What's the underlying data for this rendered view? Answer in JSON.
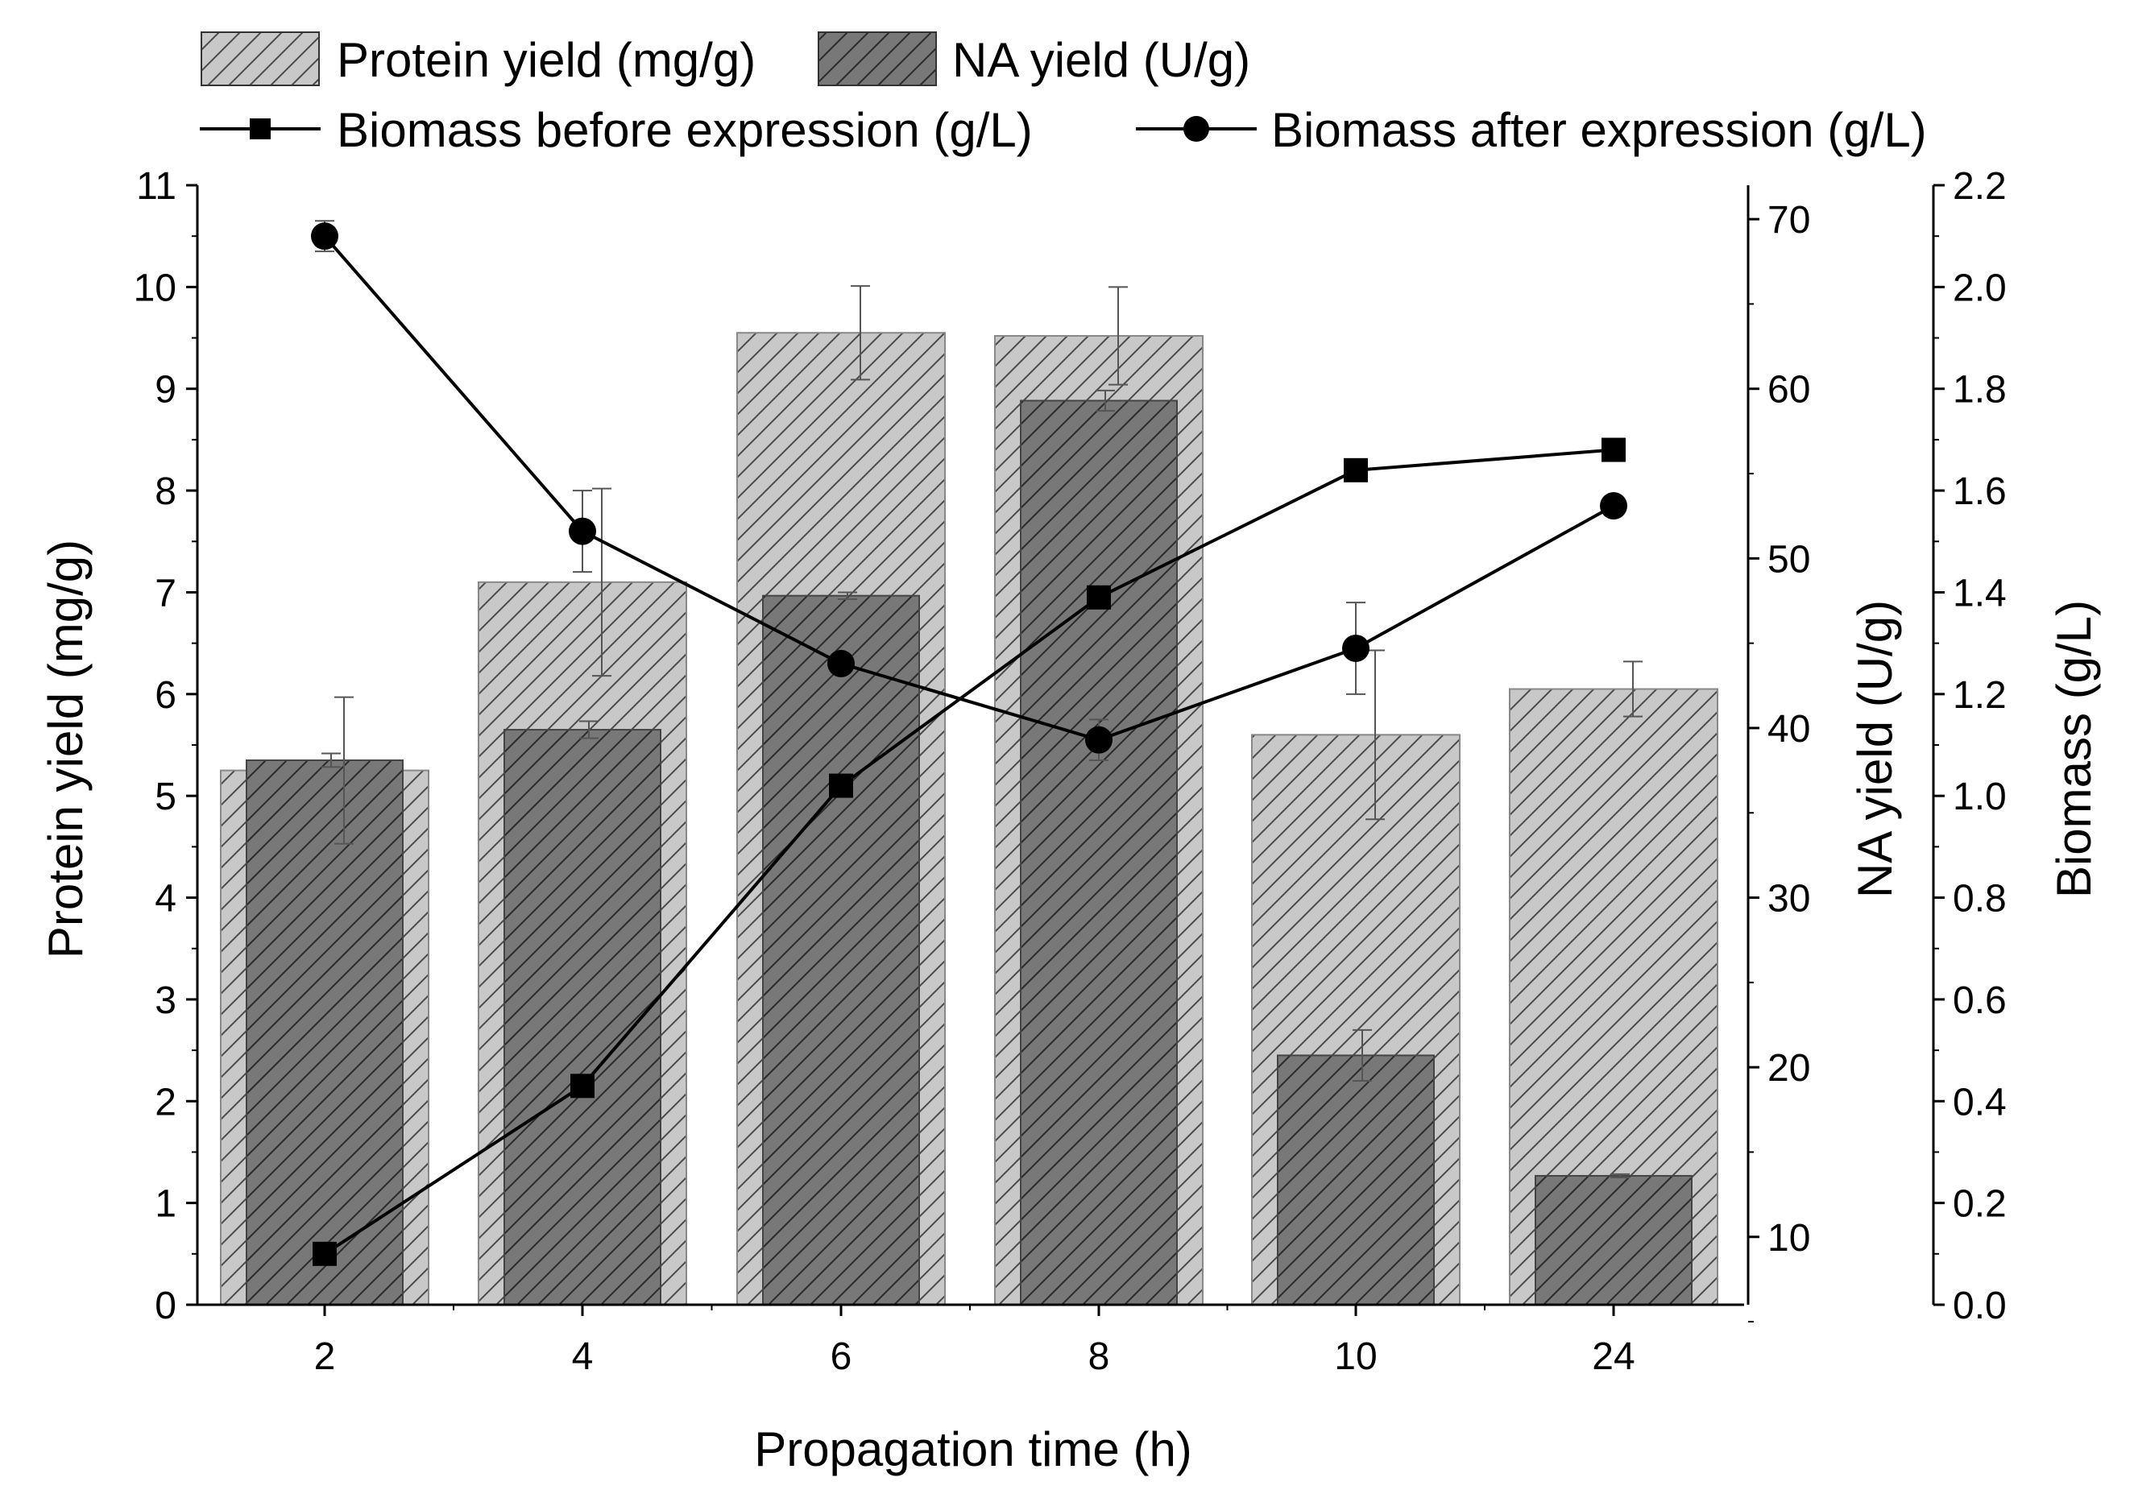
{
  "colors": {
    "protein_fill": "#c8c8c8",
    "protein_hatch": "#4a4a4a",
    "na_fill": "#787878",
    "na_hatch": "#2a2a2a",
    "line": "#000000",
    "errorbar": "#555555"
  },
  "chart_data": {
    "type": "bar",
    "title": "",
    "categories": [
      "2",
      "4",
      "6",
      "8",
      "10",
      "24"
    ],
    "xlabel": "Propagation time (h)",
    "axes": {
      "left": {
        "label": "Protein yield (mg/g)",
        "range": [
          0,
          11
        ],
        "ticks": [
          "0",
          "1",
          "2",
          "3",
          "4",
          "5",
          "6",
          "7",
          "8",
          "9",
          "10",
          "11"
        ]
      },
      "right_na": {
        "label": "NA yield (U/g)",
        "range": [
          6,
          72
        ],
        "ticks": [
          "10",
          "20",
          "30",
          "40",
          "50",
          "60",
          "70"
        ]
      },
      "right_biomass": {
        "label": "Biomass (g/L)",
        "range": [
          0.0,
          2.2
        ],
        "ticks": [
          "0.0",
          "0.2",
          "0.4",
          "0.6",
          "0.8",
          "1.0",
          "1.2",
          "1.4",
          "1.6",
          "1.8",
          "2.0",
          "2.2"
        ]
      }
    },
    "series": [
      {
        "name": "Protein yield (mg/g)",
        "type": "bar",
        "axis": "left",
        "values": [
          5.25,
          7.1,
          9.55,
          9.52,
          5.6,
          6.05
        ],
        "errors": [
          0.72,
          0.92,
          0.46,
          0.48,
          0.83,
          0.27
        ]
      },
      {
        "name": "NA yield (U/g)",
        "type": "bar",
        "axis": "right_na",
        "values": [
          38.1,
          39.9,
          47.8,
          59.3,
          20.7,
          13.6
        ],
        "errors": [
          0.4,
          0.5,
          0.2,
          0.6,
          1.5,
          0.1
        ]
      },
      {
        "name": "Biomass before expression (g/L)",
        "type": "line",
        "marker": "square",
        "axis": "right_biomass",
        "values": [
          0.1,
          0.43,
          1.02,
          1.39,
          1.64,
          1.68
        ],
        "errors": [
          0,
          0.01,
          0,
          0,
          0,
          0
        ]
      },
      {
        "name": "Biomass after expression (g/L)",
        "type": "line",
        "marker": "circle",
        "axis": "right_biomass",
        "values": [
          2.1,
          1.52,
          1.26,
          1.11,
          1.29,
          1.57
        ],
        "errors": [
          0.03,
          0.08,
          0,
          0.04,
          0.09,
          0
        ]
      }
    ],
    "legend": {
      "position": "top",
      "entries": [
        "Protein yield (mg/g)",
        "NA yield (U/g)",
        "Biomass before expression (g/L)",
        "Biomass after expression (g/L)"
      ]
    }
  }
}
